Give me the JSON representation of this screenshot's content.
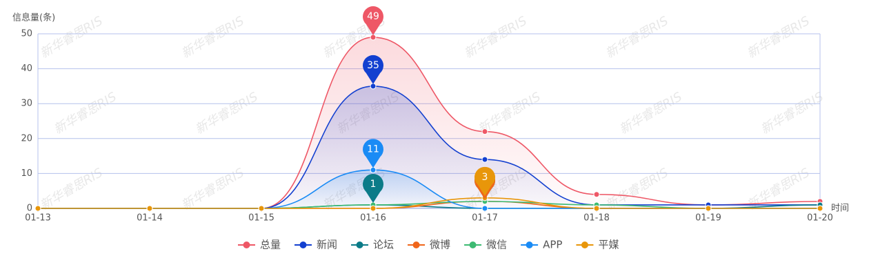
{
  "chart_data": {
    "type": "line",
    "y_axis_label": "信息量(条)",
    "x_axis_label": "时间",
    "watermark": "新华睿思RIS",
    "categories": [
      "01-13",
      "01-14",
      "01-15",
      "01-16",
      "01-17",
      "01-18",
      "01-19",
      "01-20"
    ],
    "ylim": [
      0,
      50
    ],
    "yticks": [
      0,
      10,
      20,
      30,
      40,
      50
    ],
    "grid": true,
    "smooth": true,
    "legend": "bottom",
    "series": [
      {
        "name": "总量",
        "color": "#ee5766",
        "area": true,
        "values": [
          0,
          0,
          0,
          49,
          22,
          4,
          1,
          2
        ]
      },
      {
        "name": "新闻",
        "color": "#1340d0",
        "area": true,
        "values": [
          0,
          0,
          0,
          35,
          14,
          1,
          1,
          1
        ]
      },
      {
        "name": "论坛",
        "color": "#0b7b88",
        "area": false,
        "values": [
          0,
          0,
          0,
          1,
          0,
          0,
          0,
          1
        ]
      },
      {
        "name": "微博",
        "color": "#f0661a",
        "area": false,
        "values": [
          0,
          0,
          0,
          0,
          2,
          0,
          0,
          0
        ]
      },
      {
        "name": "微信",
        "color": "#3dba72",
        "area": false,
        "values": [
          0,
          0,
          0,
          1,
          2,
          1,
          0,
          0
        ]
      },
      {
        "name": "APP",
        "color": "#1a8bf5",
        "area": true,
        "values": [
          0,
          0,
          0,
          11,
          0,
          0,
          0,
          0
        ]
      },
      {
        "name": "平媒",
        "color": "#e8960a",
        "area": false,
        "values": [
          0,
          0,
          0,
          0,
          3,
          0,
          0,
          0
        ]
      }
    ]
  }
}
